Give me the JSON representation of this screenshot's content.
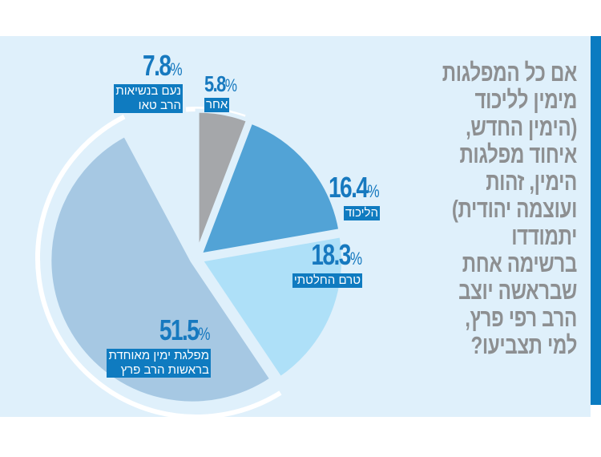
{
  "title_lines": [
    "אם כל המפלגות",
    "מימין לליכוד",
    "(הימין החדש,",
    "איחוד מפלגות",
    "הימין, זהות",
    "ועוצמה יהודית)",
    "יתמודדו",
    "ברשימה אחת",
    "שבראשה יוצב",
    "הרב רפי פרץ,",
    "למי תצביעו?"
  ],
  "chart_data": {
    "type": "pie",
    "title": "אם כל המפלגות מימין לליכוד (הימין החדש, איחוד מפלגות הימין, זהות ועוצמה יהודית) יתמודדו ברשימה אחת שבראשה יוצב הרב רפי פרץ, למי תצביעו?",
    "slices": [
      {
        "label": "אחר",
        "value": 5.8,
        "pct": "5.8",
        "color": "#a5a7aa"
      },
      {
        "label": "הליכוד",
        "value": 16.4,
        "pct": "16.4",
        "color": "#52a3d6"
      },
      {
        "label": "טרם החלטתי",
        "value": 18.3,
        "pct": "18.3",
        "color": "#aee0f8"
      },
      {
        "label": "מפלגת ימין מאוחדת בראשות הרב פרץ",
        "label_lines": [
          "מפלגת ימין מאוחדת",
          "בראשות הרב פרץ"
        ],
        "value": 51.5,
        "pct": "51.5",
        "color": "#a6c8e3"
      },
      {
        "label": "נעם בנשיאות הרב טאו",
        "label_lines": [
          "נעם בנשיאות",
          "הרב טאו"
        ],
        "value": 7.8,
        "pct": "7.8",
        "color": "none"
      }
    ],
    "unit": "%"
  },
  "colors": {
    "panel": "#dff0fb",
    "accent": "#0f7bc0",
    "title": "#8d8f91"
  }
}
